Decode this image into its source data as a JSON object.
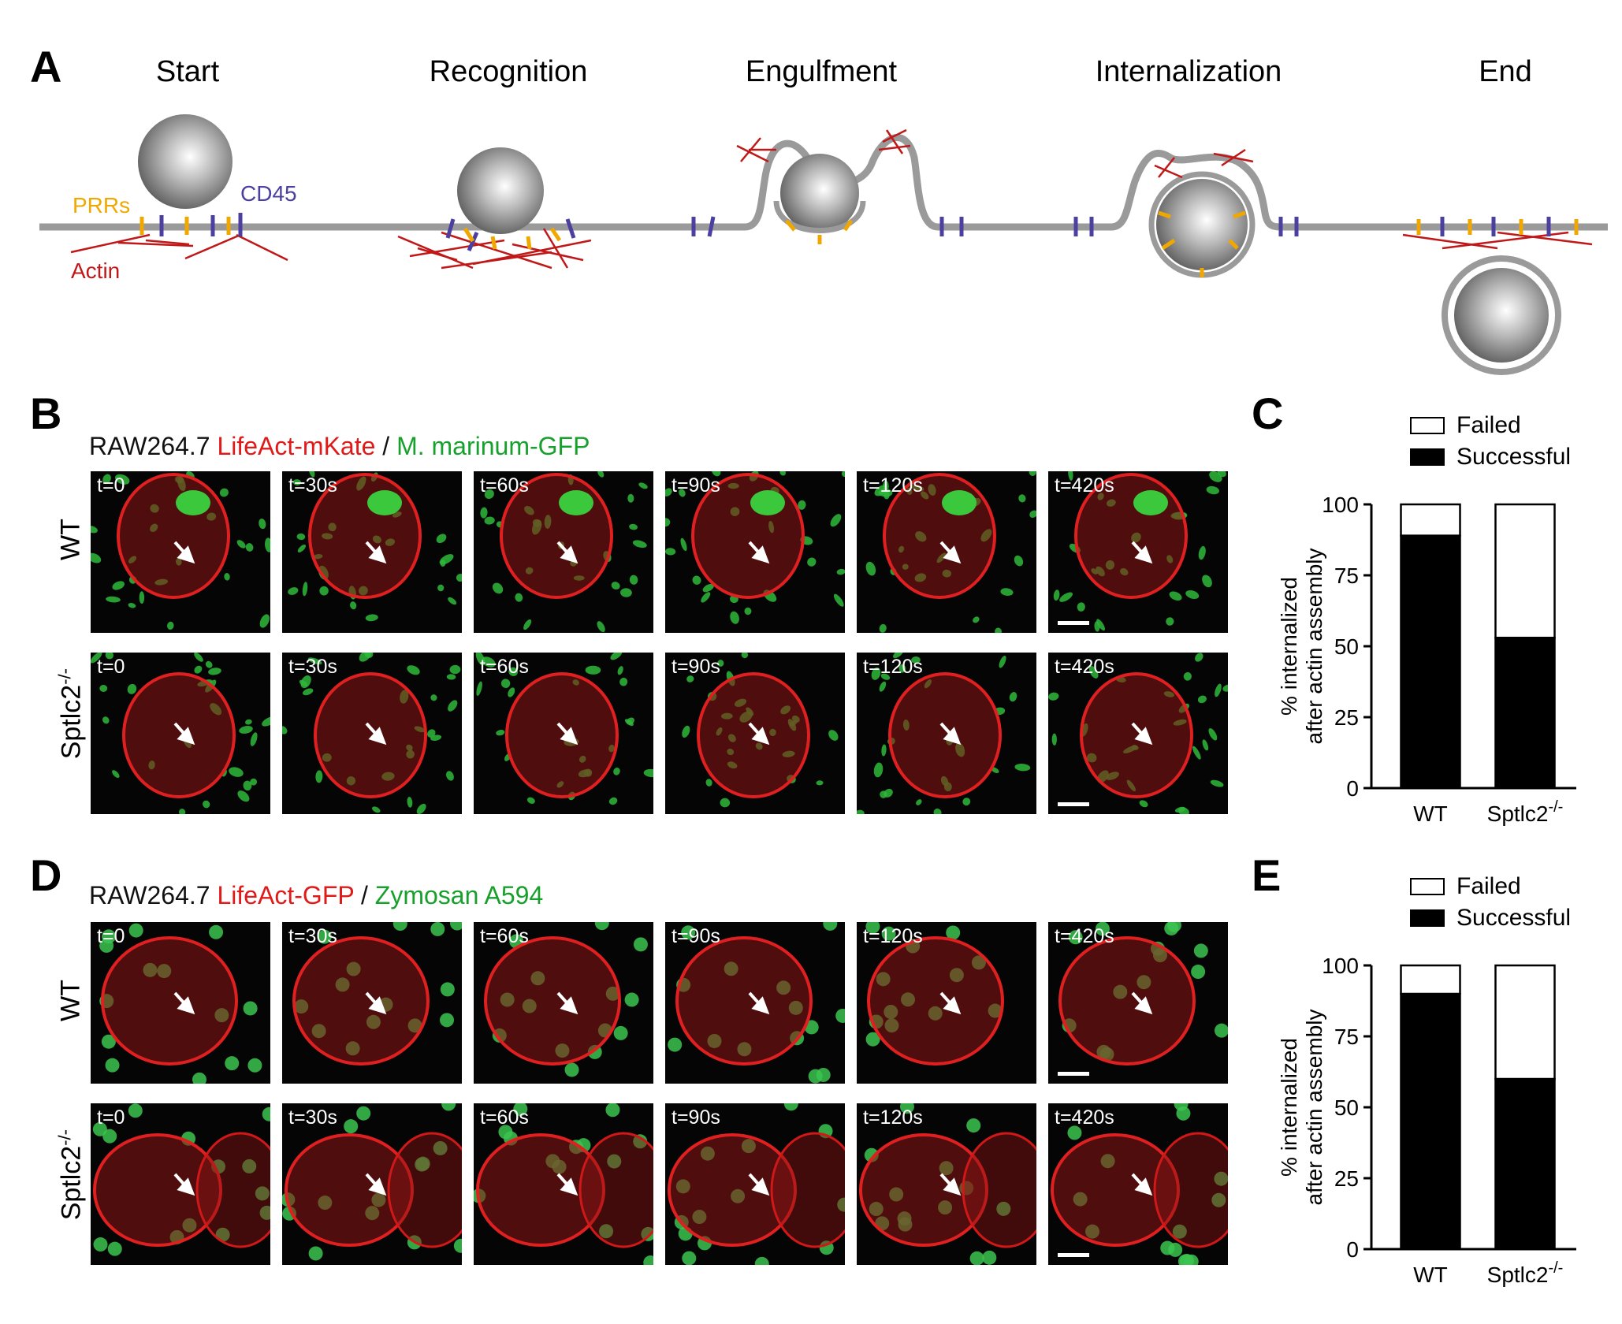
{
  "panelA": {
    "letter": "A",
    "stages": [
      "Start",
      "Recognition",
      "Engulfment",
      "Internalization",
      "End"
    ],
    "labels": {
      "prrs": "PRRs",
      "cd45": "CD45",
      "actin": "Actin"
    },
    "colors": {
      "membrane": "#9a9a9a",
      "prr": "#f0a800",
      "cd45": "#4b3fa0",
      "actin": "#c01818"
    }
  },
  "panelB": {
    "letter": "B",
    "header": {
      "cell": "RAW264.7",
      "probe": "LifeAct-mKate",
      "sep": " / ",
      "target": "M. marinum-GFP"
    },
    "rows": [
      "WT",
      "Sptlc2-/-"
    ],
    "timepoints": [
      "t=0",
      "t=30s",
      "t=60s",
      "t=90s",
      "t=120s",
      "t=420s"
    ]
  },
  "panelD": {
    "letter": "D",
    "header": {
      "cell": "RAW264.7",
      "probe": "LifeAct-GFP",
      "sep": " / ",
      "target": "Zymosan A594"
    },
    "rows": [
      "WT",
      "Sptlc2-/-"
    ],
    "timepoints": [
      "t=0",
      "t=30s",
      "t=60s",
      "t=90s",
      "t=120s",
      "t=420s"
    ]
  },
  "chart_data": [
    {
      "panel": "C",
      "type": "bar",
      "stacked": true,
      "categories": [
        "WT",
        "Sptlc2-/-"
      ],
      "series": [
        {
          "name": "Successful",
          "values": [
            89,
            53
          ],
          "color": "#000000"
        },
        {
          "name": "Failed",
          "values": [
            11,
            47
          ],
          "color": "#ffffff"
        }
      ],
      "ylabel": "% internalized after actin assembly",
      "ylim": [
        0,
        100
      ],
      "yticks": [
        0,
        25,
        50,
        75,
        100
      ],
      "legend": "top"
    },
    {
      "panel": "E",
      "type": "bar",
      "stacked": true,
      "categories": [
        "WT",
        "Sptlc2-/-"
      ],
      "series": [
        {
          "name": "Successful",
          "values": [
            90,
            60
          ],
          "color": "#000000"
        },
        {
          "name": "Failed",
          "values": [
            10,
            40
          ],
          "color": "#ffffff"
        }
      ],
      "ylabel": "% internalized after actin assembly",
      "ylim": [
        0,
        100
      ],
      "yticks": [
        0,
        25,
        50,
        75,
        100
      ],
      "legend": "top"
    }
  ]
}
